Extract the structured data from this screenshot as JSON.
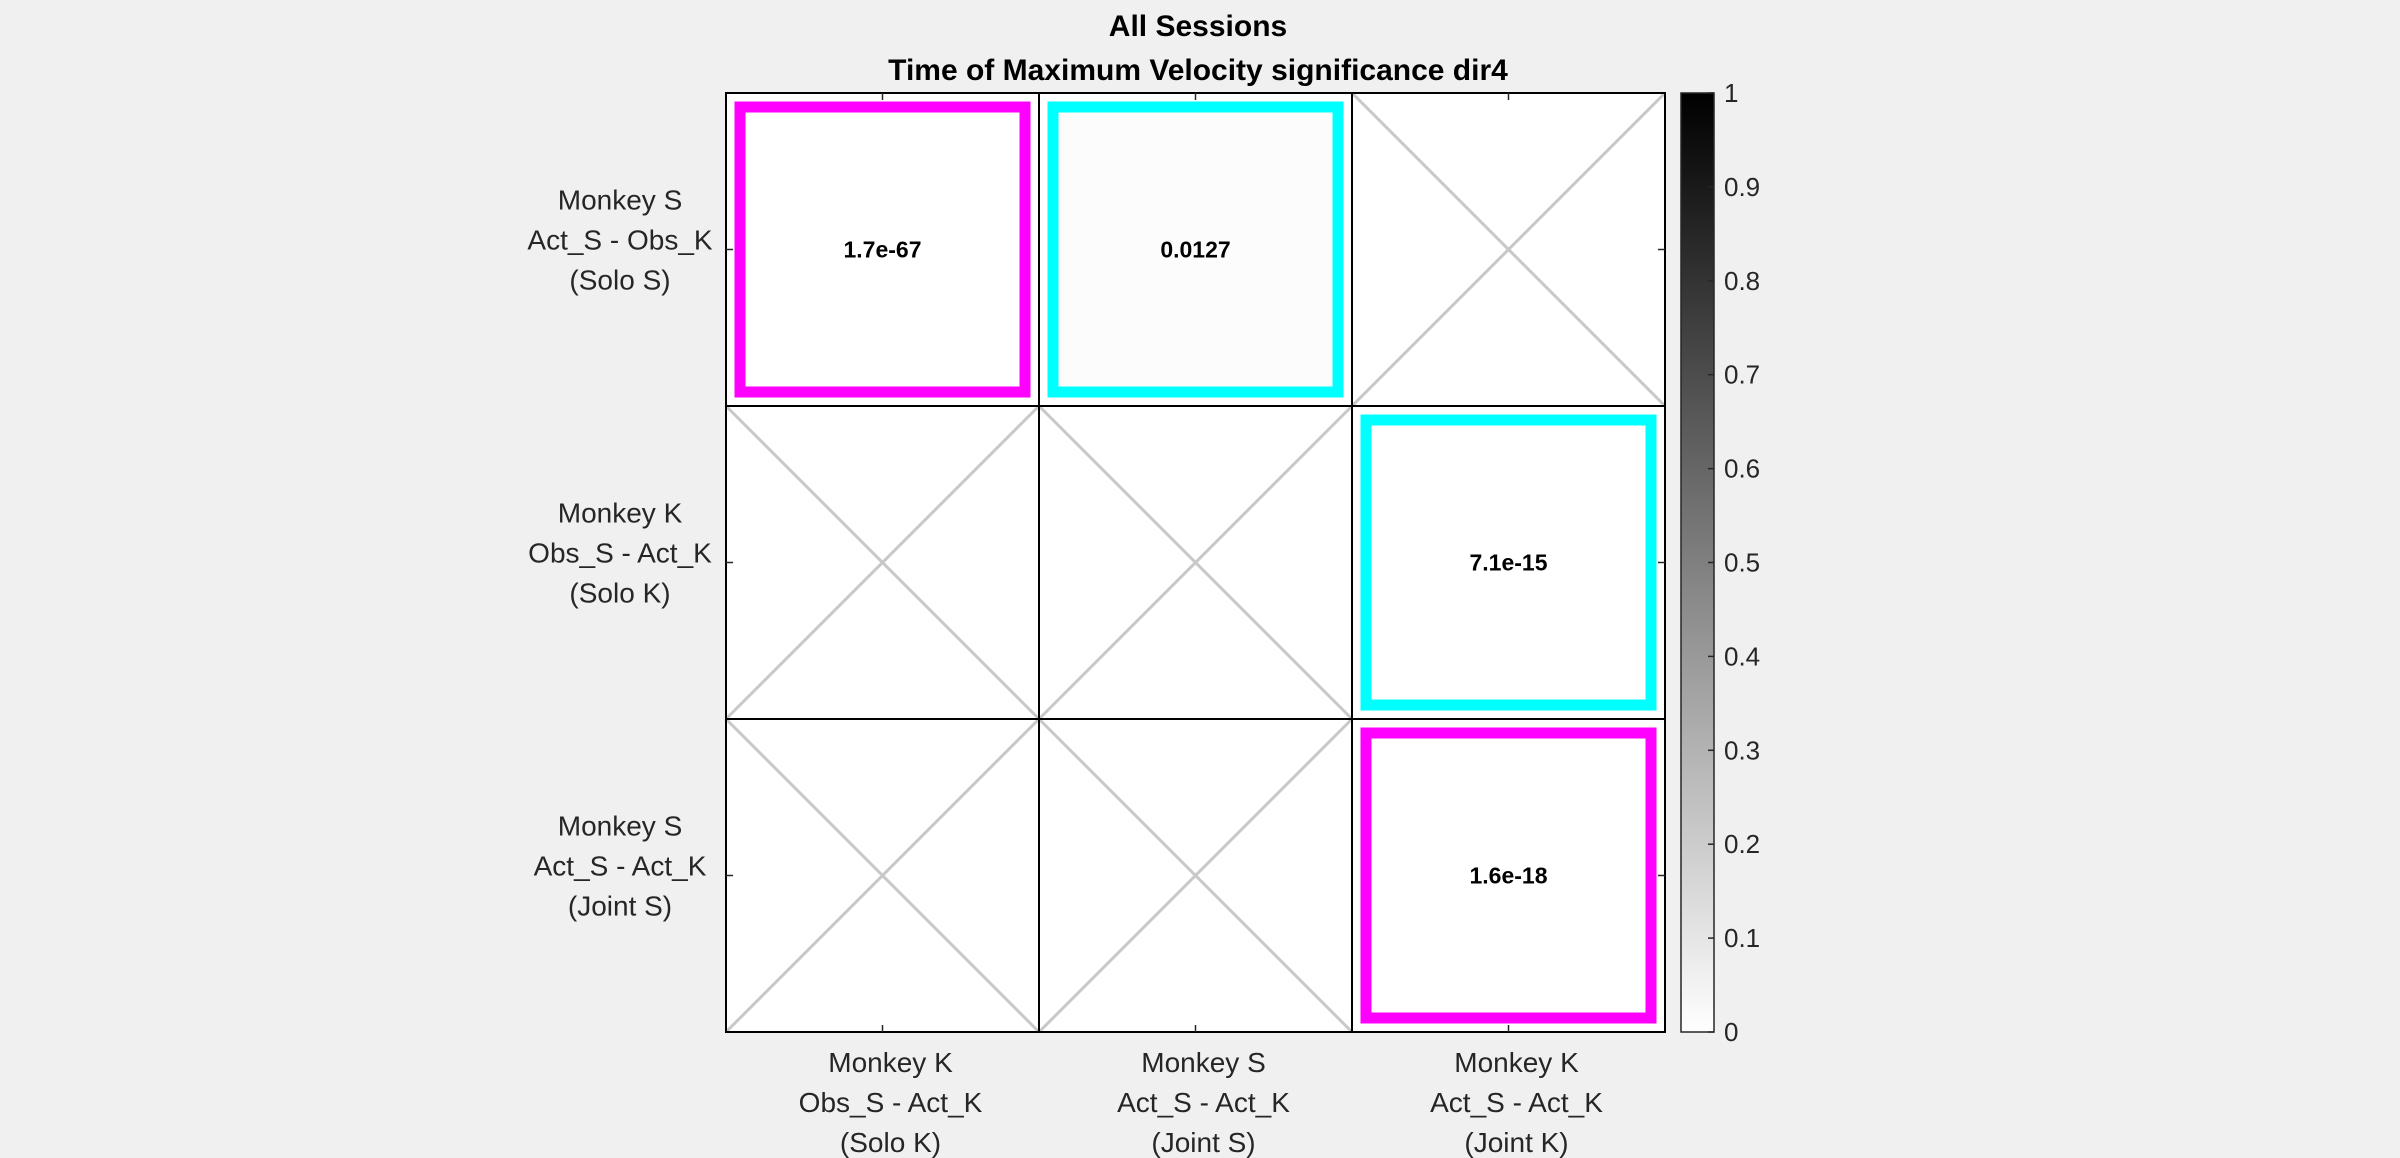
{
  "chart_data": {
    "type": "heatmap",
    "title": "All Sessions",
    "subtitle": "Time of Maximum Velocity significance dir4",
    "row_labels": [
      [
        "Monkey S",
        "Act_S - Obs_K",
        "(Solo S)"
      ],
      [
        "Monkey K",
        "Obs_S - Act_K",
        "(Solo K)"
      ],
      [
        "Monkey S",
        "Act_S - Act_K",
        "(Joint S)"
      ]
    ],
    "col_labels": [
      [
        "Monkey K",
        "Obs_S - Act_K",
        "(Solo K)"
      ],
      [
        "Monkey S",
        "Act_S - Act_K",
        "(Joint S)"
      ],
      [
        "Monkey K",
        "Act_S - Act_K",
        "(Joint K)"
      ]
    ],
    "cells": [
      {
        "row": 0,
        "col": 0,
        "value": 1.7e-67,
        "label": "1.7e-67",
        "border_color": "#ff00ff"
      },
      {
        "row": 0,
        "col": 1,
        "value": 0.0127,
        "label": "0.0127",
        "border_color": "#00ffff"
      },
      {
        "row": 0,
        "col": 2,
        "value": null,
        "label": "",
        "border_color": null
      },
      {
        "row": 1,
        "col": 0,
        "value": null,
        "label": "",
        "border_color": null
      },
      {
        "row": 1,
        "col": 1,
        "value": null,
        "label": "",
        "border_color": null
      },
      {
        "row": 1,
        "col": 2,
        "value": 7.1e-15,
        "label": "7.1e-15",
        "border_color": "#00ffff"
      },
      {
        "row": 2,
        "col": 0,
        "value": null,
        "label": "",
        "border_color": null
      },
      {
        "row": 2,
        "col": 1,
        "value": null,
        "label": "",
        "border_color": null
      },
      {
        "row": 2,
        "col": 2,
        "value": 1.6e-18,
        "label": "1.6e-18",
        "border_color": "#ff00ff"
      }
    ],
    "colorbar": {
      "range": [
        0,
        1
      ],
      "ticks": [
        "0",
        "0.1",
        "0.2",
        "0.3",
        "0.4",
        "0.5",
        "0.6",
        "0.7",
        "0.8",
        "0.9",
        "1"
      ],
      "colormap": "gray-reversed"
    },
    "colors": {
      "background": "#f0f0f0",
      "magenta": "#ff00ff",
      "cyan": "#00ffff",
      "empty_cross": "#c8c8c8"
    }
  }
}
